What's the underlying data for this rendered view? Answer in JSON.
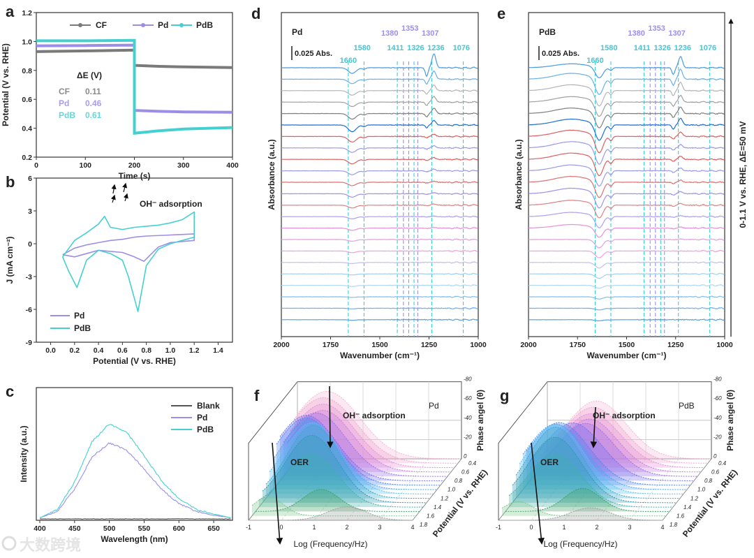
{
  "watermark": "大数跨境",
  "chart_data": [
    {
      "panel_label": "a",
      "type": "line",
      "xlabel": "Time (s)",
      "ylabel": "Potential (V vs. RHE)",
      "xlim": [
        0,
        400
      ],
      "ylim": [
        0.2,
        1.2
      ],
      "xticks": [
        0,
        100,
        200,
        300,
        400
      ],
      "xtick_labels": [
        "0",
        "100",
        "200",
        "300",
        "400"
      ],
      "yticks": [
        0.2,
        0.4,
        0.6,
        0.8,
        1.0,
        1.2
      ],
      "ytick_labels": [
        "0.2",
        "0.4",
        "0.6",
        "0.8",
        "1.0",
        "1.2"
      ],
      "legend_placement": "top",
      "series": [
        {
          "name": "CF",
          "color": "#7a7a7a",
          "x": [
            0,
            100,
            199,
            200,
            200,
            250,
            300,
            400
          ],
          "y": [
            0.93,
            0.935,
            0.94,
            0.94,
            0.835,
            0.828,
            0.824,
            0.82
          ]
        },
        {
          "name": "Pd",
          "color": "#9b8ee8",
          "x": [
            0,
            100,
            199,
            200,
            200,
            250,
            300,
            400
          ],
          "y": [
            0.97,
            0.972,
            0.975,
            0.975,
            0.523,
            0.517,
            0.513,
            0.51
          ]
        },
        {
          "name": "PdB",
          "color": "#45d0d0",
          "x": [
            0,
            100,
            199,
            200,
            200,
            250,
            300,
            400
          ],
          "y": [
            1.005,
            1.005,
            1.008,
            1.008,
            0.365,
            0.382,
            0.394,
            0.405
          ]
        }
      ],
      "annotation": {
        "title": "ΔE (V)",
        "rows": [
          {
            "label": "CF",
            "value": "0.11",
            "color": "#8a8a8a"
          },
          {
            "label": "Pd",
            "value": "0.46",
            "color": "#a79cf0"
          },
          {
            "label": "PdB",
            "value": "0.61",
            "color": "#5fd8d8"
          }
        ]
      }
    },
    {
      "panel_label": "b",
      "type": "line",
      "xlabel": "Potential (V vs. RHE)",
      "ylabel": "J (mA cm⁻²)",
      "xlim": [
        -0.12,
        1.52
      ],
      "ylim": [
        -9,
        6
      ],
      "xticks": [
        0.0,
        0.2,
        0.4,
        0.6,
        0.8,
        1.0,
        1.2,
        1.4
      ],
      "xtick_labels": [
        "0.0",
        "0.2",
        "0.4",
        "0.6",
        "0.8",
        "1.0",
        "1.2",
        "1.4"
      ],
      "yticks": [
        -9,
        -6,
        -3,
        0,
        3,
        6
      ],
      "ytick_labels": [
        "-9",
        "-6",
        "-3",
        "0",
        "3",
        "6"
      ],
      "legend_placement": "bottom-left",
      "annotation": "OH⁻ adsorption",
      "series": [
        {
          "name": "Pd",
          "color": "#9b8ee8",
          "x": [
            0.1,
            0.2,
            0.3,
            0.4,
            0.5,
            0.6,
            0.7,
            0.8,
            1.0,
            1.2,
            1.2,
            1.0,
            0.9,
            0.78,
            0.7,
            0.6,
            0.4,
            0.2,
            0.1
          ],
          "y": [
            -1.0,
            -0.4,
            -0.1,
            0.1,
            0.3,
            0.4,
            0.6,
            0.7,
            0.8,
            0.9,
            0.3,
            0.1,
            -0.3,
            -1.6,
            -1.2,
            -0.8,
            -0.6,
            -1.2,
            -1.0
          ]
        },
        {
          "name": "PdB",
          "color": "#45d0d0",
          "x": [
            0.1,
            0.2,
            0.3,
            0.4,
            0.45,
            0.5,
            0.6,
            0.7,
            0.8,
            0.9,
            1.0,
            1.1,
            1.2,
            1.2,
            1.1,
            1.0,
            0.9,
            0.8,
            0.73,
            0.65,
            0.6,
            0.5,
            0.4,
            0.3,
            0.22,
            0.15,
            0.1
          ],
          "y": [
            -1.2,
            0.3,
            1.0,
            1.8,
            2.5,
            1.5,
            1.3,
            1.5,
            1.6,
            1.7,
            1.9,
            2.2,
            2.9,
            0.6,
            0.3,
            0.0,
            -0.5,
            -2.0,
            -6.2,
            -3.0,
            -1.5,
            -0.9,
            -0.6,
            -1.5,
            -4.0,
            -2.5,
            -1.2
          ]
        }
      ]
    },
    {
      "panel_label": "c",
      "type": "line",
      "xlabel": "Wavelength (nm)",
      "ylabel": "Intensity (a.u.)",
      "xlim": [
        395,
        677
      ],
      "ylim": [
        0,
        1
      ],
      "xticks": [
        400,
        450,
        500,
        550,
        600,
        650
      ],
      "xtick_labels": [
        "400",
        "450",
        "500",
        "550",
        "600",
        "650"
      ],
      "yticks": [],
      "ytick_labels": [],
      "legend_placement": "top-right",
      "series": [
        {
          "name": "Blank",
          "color": "#555555",
          "x": [
            400,
            450,
            500,
            550,
            600,
            650,
            675
          ],
          "y": [
            0.0,
            0.0,
            0.0,
            0.0,
            0.0,
            0.0,
            0.0
          ]
        },
        {
          "name": "Pd",
          "color": "#9b8ee8",
          "x": [
            400,
            425,
            450,
            475,
            500,
            525,
            550,
            575,
            600,
            625,
            650,
            675
          ],
          "y": [
            0.01,
            0.06,
            0.25,
            0.52,
            0.64,
            0.58,
            0.42,
            0.25,
            0.13,
            0.06,
            0.03,
            0.01
          ]
        },
        {
          "name": "PdB",
          "color": "#45d0d0",
          "x": [
            400,
            425,
            450,
            475,
            500,
            525,
            550,
            575,
            600,
            625,
            650,
            675
          ],
          "y": [
            0.01,
            0.08,
            0.31,
            0.65,
            0.8,
            0.73,
            0.53,
            0.32,
            0.17,
            0.08,
            0.04,
            0.01
          ]
        }
      ]
    },
    {
      "panel_label": "d",
      "type": "line",
      "title": "Pd",
      "xlabel": "Wavenumber (cm⁻¹)",
      "ylabel": "Absorbance (a.u.)",
      "xlim": [
        2000,
        1000
      ],
      "xticks": [
        2000,
        1750,
        1500,
        1250,
        1000
      ],
      "xtick_labels": [
        "2000",
        "1750",
        "1500",
        "1250",
        "1000"
      ],
      "scale_bar": "0.025 Abs.",
      "peaks_cyan": [
        "1660",
        "1580",
        "1411",
        "1326",
        "1236",
        "1076"
      ],
      "peaks_purple": [
        "1380",
        "1353",
        "1307"
      ],
      "traces": [
        {
          "color": "#4a9be0",
          "band_1640": -0.01,
          "band_1236": 0.025
        },
        {
          "color": "#6ab0e8",
          "band_1640": -0.008,
          "band_1236": 0.015
        },
        {
          "color": "#b5b5b5",
          "band_1640": -0.008,
          "band_1236": 0.01
        },
        {
          "color": "#a0a0a0",
          "band_1640": -0.008,
          "band_1236": 0.01
        },
        {
          "color": "#7f7f7f",
          "band_1640": -0.01,
          "band_1236": 0.01
        },
        {
          "color": "#1f6fd0",
          "band_1640": -0.012,
          "band_1236": 0.008
        },
        {
          "color": "#e06060",
          "band_1640": -0.01,
          "band_1236": 0.004
        },
        {
          "color": "#9a9ae8",
          "band_1640": -0.008,
          "band_1236": 0.004
        },
        {
          "color": "#e06060",
          "band_1640": -0.008,
          "band_1236": 0.003
        },
        {
          "color": "#9a9ae8",
          "band_1640": -0.007,
          "band_1236": 0.003
        },
        {
          "color": "#e07070",
          "band_1640": -0.006,
          "band_1236": 0.002
        },
        {
          "color": "#a090e8",
          "band_1640": -0.006,
          "band_1236": 0.002
        },
        {
          "color": "#e08080",
          "band_1640": -0.005,
          "band_1236": 0.002
        },
        {
          "color": "#b0a0ee",
          "band_1640": -0.004,
          "band_1236": 0.001
        },
        {
          "color": "#e890d8",
          "band_1640": -0.004,
          "band_1236": 0.001
        },
        {
          "color": "#e0a0e0",
          "band_1640": -0.003,
          "band_1236": 0.0
        },
        {
          "color": "#f0a0e0",
          "band_1640": -0.003,
          "band_1236": 0.0
        },
        {
          "color": "#c0c0ee",
          "band_1640": -0.002,
          "band_1236": 0.0
        },
        {
          "color": "#a0d0f0",
          "band_1640": -0.002,
          "band_1236": 0.0
        },
        {
          "color": "#b0d8f0",
          "band_1640": -0.002,
          "band_1236": 0.0
        },
        {
          "color": "#80c0f0",
          "band_1640": -0.001,
          "band_1236": 0.0
        },
        {
          "color": "#70b0f0",
          "band_1640": -0.001,
          "band_1236": 0.0
        },
        {
          "color": "#5aa0e0",
          "band_1640": -0.001,
          "band_1236": 0.0
        }
      ]
    },
    {
      "panel_label": "e",
      "type": "line",
      "title": "PdB",
      "xlabel": "Wavenumber (cm⁻¹)",
      "ylabel": "Absorbance (a.u.)",
      "xlim": [
        2000,
        1000
      ],
      "xticks": [
        2000,
        1750,
        1500,
        1250,
        1000
      ],
      "xtick_labels": [
        "2000",
        "1750",
        "1500",
        "1250",
        "1000"
      ],
      "scale_bar": "0.025 Abs.",
      "peaks_cyan": [
        "1660",
        "1580",
        "1411",
        "1326",
        "1236",
        "1076"
      ],
      "peaks_purple": [
        "1380",
        "1353",
        "1307"
      ],
      "side_label": "0-1.1 V vs. RHE, ΔE=50 mV",
      "traces": [
        {
          "color": "#4a9be0",
          "band_1640": -0.02,
          "band_1236": 0.02
        },
        {
          "color": "#6ab0e8",
          "band_1640": -0.03,
          "band_1236": 0.018
        },
        {
          "color": "#b5b5b5",
          "band_1640": -0.03,
          "band_1236": 0.015
        },
        {
          "color": "#a0a0a0",
          "band_1640": -0.028,
          "band_1236": 0.012
        },
        {
          "color": "#7f7f7f",
          "band_1640": -0.028,
          "band_1236": 0.012
        },
        {
          "color": "#1f6fd0",
          "band_1640": -0.03,
          "band_1236": 0.012
        },
        {
          "color": "#e06060",
          "band_1640": -0.032,
          "band_1236": 0.008
        },
        {
          "color": "#9a9ae8",
          "band_1640": -0.032,
          "band_1236": 0.006
        },
        {
          "color": "#e06060",
          "band_1640": -0.032,
          "band_1236": 0.006
        },
        {
          "color": "#9a9ae8",
          "band_1640": -0.03,
          "band_1236": 0.005
        },
        {
          "color": "#e07070",
          "band_1640": -0.03,
          "band_1236": 0.004
        },
        {
          "color": "#a090e8",
          "band_1640": -0.028,
          "band_1236": 0.004
        },
        {
          "color": "#e08080",
          "band_1640": -0.025,
          "band_1236": 0.003
        },
        {
          "color": "#b0a0ee",
          "band_1640": -0.022,
          "band_1236": 0.002
        },
        {
          "color": "#e890d8",
          "band_1640": -0.018,
          "band_1236": 0.002
        },
        {
          "color": "#e0a0e0",
          "band_1640": -0.015,
          "band_1236": 0.001
        },
        {
          "color": "#f0a0e0",
          "band_1640": -0.012,
          "band_1236": 0.0
        },
        {
          "color": "#c0c0ee",
          "band_1640": -0.01,
          "band_1236": 0.0
        },
        {
          "color": "#a0d0f0",
          "band_1640": -0.008,
          "band_1236": 0.0
        },
        {
          "color": "#b0d8f0",
          "band_1640": -0.005,
          "band_1236": 0.0
        },
        {
          "color": "#80c0f0",
          "band_1640": -0.004,
          "band_1236": 0.0
        },
        {
          "color": "#70b0f0",
          "band_1640": -0.003,
          "band_1236": 0.0
        },
        {
          "color": "#5aa0e0",
          "band_1640": -0.002,
          "band_1236": 0.0
        }
      ]
    },
    {
      "panel_label": "f",
      "type": "area",
      "title": "Pd",
      "xlabel": "Log (Frequency/Hz)",
      "ylabel": "Phase angel (θ)",
      "zlabel": "Potential (V vs. RHE)",
      "xlim": [
        -1,
        4
      ],
      "xtick_labels": [
        "-1",
        "0",
        "1",
        "2",
        "3",
        "4"
      ],
      "phase_lim": [
        0,
        -80
      ],
      "phase_tick_labels": [
        "0",
        "-20",
        "-40",
        "-60",
        "-80"
      ],
      "potential_tick_labels": [
        "0.4",
        "0.6",
        "0.8",
        "1.0",
        "1.2",
        "1.4",
        "1.6",
        "1.8"
      ],
      "annotations": [
        "OH⁻ adsorption",
        "OER"
      ],
      "series": [
        {
          "potential": 0.4,
          "peak_logf": -0.1,
          "peak_phase": -70,
          "width": 1.0,
          "color": "#f4b6d6"
        },
        {
          "potential": 0.5,
          "peak_logf": -0.1,
          "peak_phase": -68,
          "width": 1.0,
          "color": "#f0a6d0"
        },
        {
          "potential": 0.6,
          "peak_logf": 0.0,
          "peak_phase": -66,
          "width": 0.95,
          "color": "#e590d8"
        },
        {
          "potential": 0.7,
          "peak_logf": 0.1,
          "peak_phase": -64,
          "width": 0.9,
          "color": "#c77de0"
        },
        {
          "potential": 0.8,
          "peak_logf": 0.0,
          "peak_phase": -66,
          "width": 0.9,
          "color": "#9a70e8"
        },
        {
          "potential": 0.9,
          "peak_logf": -0.2,
          "peak_phase": -68,
          "width": 0.9,
          "color": "#6f6ff0"
        },
        {
          "potential": 1.0,
          "peak_logf": -0.1,
          "peak_phase": -70,
          "width": 0.9,
          "color": "#4f86f0"
        },
        {
          "potential": 1.1,
          "peak_logf": 0.1,
          "peak_phase": -72,
          "width": 0.85,
          "color": "#4aa5f0"
        },
        {
          "potential": 1.2,
          "peak_logf": 0.3,
          "peak_phase": -74,
          "width": 0.85,
          "color": "#5cc0f0"
        },
        {
          "potential": 1.3,
          "peak_logf": 0.45,
          "peak_phase": -76,
          "width": 0.8,
          "color": "#3aa8c8"
        },
        {
          "potential": 1.4,
          "peak_logf": 0.5,
          "peak_phase": -70,
          "width": 0.8,
          "color": "#2e98b0"
        },
        {
          "potential": 1.5,
          "peak_logf": 0.6,
          "peak_phase": -55,
          "width": 0.8,
          "color": "#40b0a8"
        },
        {
          "potential": 1.6,
          "peak_logf": 1.0,
          "peak_phase": -23,
          "width": 0.55,
          "color": "#3aa060"
        },
        {
          "potential": 1.7,
          "peak_logf": -0.5,
          "peak_phase": -20,
          "width": 0.45,
          "color": "#80c890"
        },
        {
          "potential": 1.8,
          "peak_logf": 2.0,
          "peak_phase": -14,
          "width": 0.6,
          "color": "#a0a0a0"
        }
      ]
    },
    {
      "panel_label": "g",
      "type": "area",
      "title": "PdB",
      "xlabel": "Log (Frequency/Hz)",
      "ylabel": "Phase angel (θ)",
      "zlabel": "Potential (V vs. RHE)",
      "xlim": [
        -1,
        4
      ],
      "xtick_labels": [
        "-1",
        "0",
        "1",
        "2",
        "3",
        "4"
      ],
      "phase_lim": [
        0,
        -80
      ],
      "phase_tick_labels": [
        "0",
        "-20",
        "-40",
        "-60",
        "-80"
      ],
      "potential_tick_labels": [
        "0.4",
        "0.6",
        "0.8",
        "1.0",
        "1.2",
        "1.4",
        "1.6",
        "1.8"
      ],
      "annotations": [
        "OH⁻ adsorption",
        "OER"
      ],
      "series": [
        {
          "potential": 0.4,
          "peak_logf": 0.5,
          "peak_phase": -60,
          "width": 0.9,
          "color": "#f4b6d6"
        },
        {
          "potential": 0.5,
          "peak_logf": 0.5,
          "peak_phase": -58,
          "width": 0.9,
          "color": "#f0a6d0"
        },
        {
          "potential": 0.6,
          "peak_logf": 0.55,
          "peak_phase": -56,
          "width": 0.9,
          "color": "#e590d8"
        },
        {
          "potential": 0.7,
          "peak_logf": 0.6,
          "peak_phase": -55,
          "width": 0.85,
          "color": "#c77de0"
        },
        {
          "potential": 0.8,
          "peak_logf": 0.6,
          "peak_phase": -55,
          "width": 0.85,
          "color": "#9a70e8"
        },
        {
          "potential": 0.9,
          "peak_logf": 0.3,
          "peak_phase": -60,
          "width": 0.9,
          "color": "#6f6ff0"
        },
        {
          "potential": 1.0,
          "peak_logf": 0.0,
          "peak_phase": -65,
          "width": 0.9,
          "color": "#4f86f0"
        },
        {
          "potential": 1.1,
          "peak_logf": 0.0,
          "peak_phase": -68,
          "width": 0.9,
          "color": "#4aa5f0"
        },
        {
          "potential": 1.2,
          "peak_logf": 0.1,
          "peak_phase": -72,
          "width": 0.85,
          "color": "#5cc0f0"
        },
        {
          "potential": 1.3,
          "peak_logf": 0.2,
          "peak_phase": -74,
          "width": 0.8,
          "color": "#3aa8c8"
        },
        {
          "potential": 1.4,
          "peak_logf": 0.3,
          "peak_phase": -68,
          "width": 0.8,
          "color": "#2e98b0"
        },
        {
          "potential": 1.5,
          "peak_logf": 0.4,
          "peak_phase": -55,
          "width": 0.8,
          "color": "#40b0a8"
        },
        {
          "potential": 1.6,
          "peak_logf": 1.35,
          "peak_phase": -24,
          "width": 0.55,
          "color": "#3aa060"
        },
        {
          "potential": 1.7,
          "peak_logf": -0.5,
          "peak_phase": -15,
          "width": 0.45,
          "color": "#80c890"
        },
        {
          "potential": 1.8,
          "peak_logf": 1.8,
          "peak_phase": -13,
          "width": 0.6,
          "color": "#a0a0a0"
        }
      ]
    }
  ]
}
